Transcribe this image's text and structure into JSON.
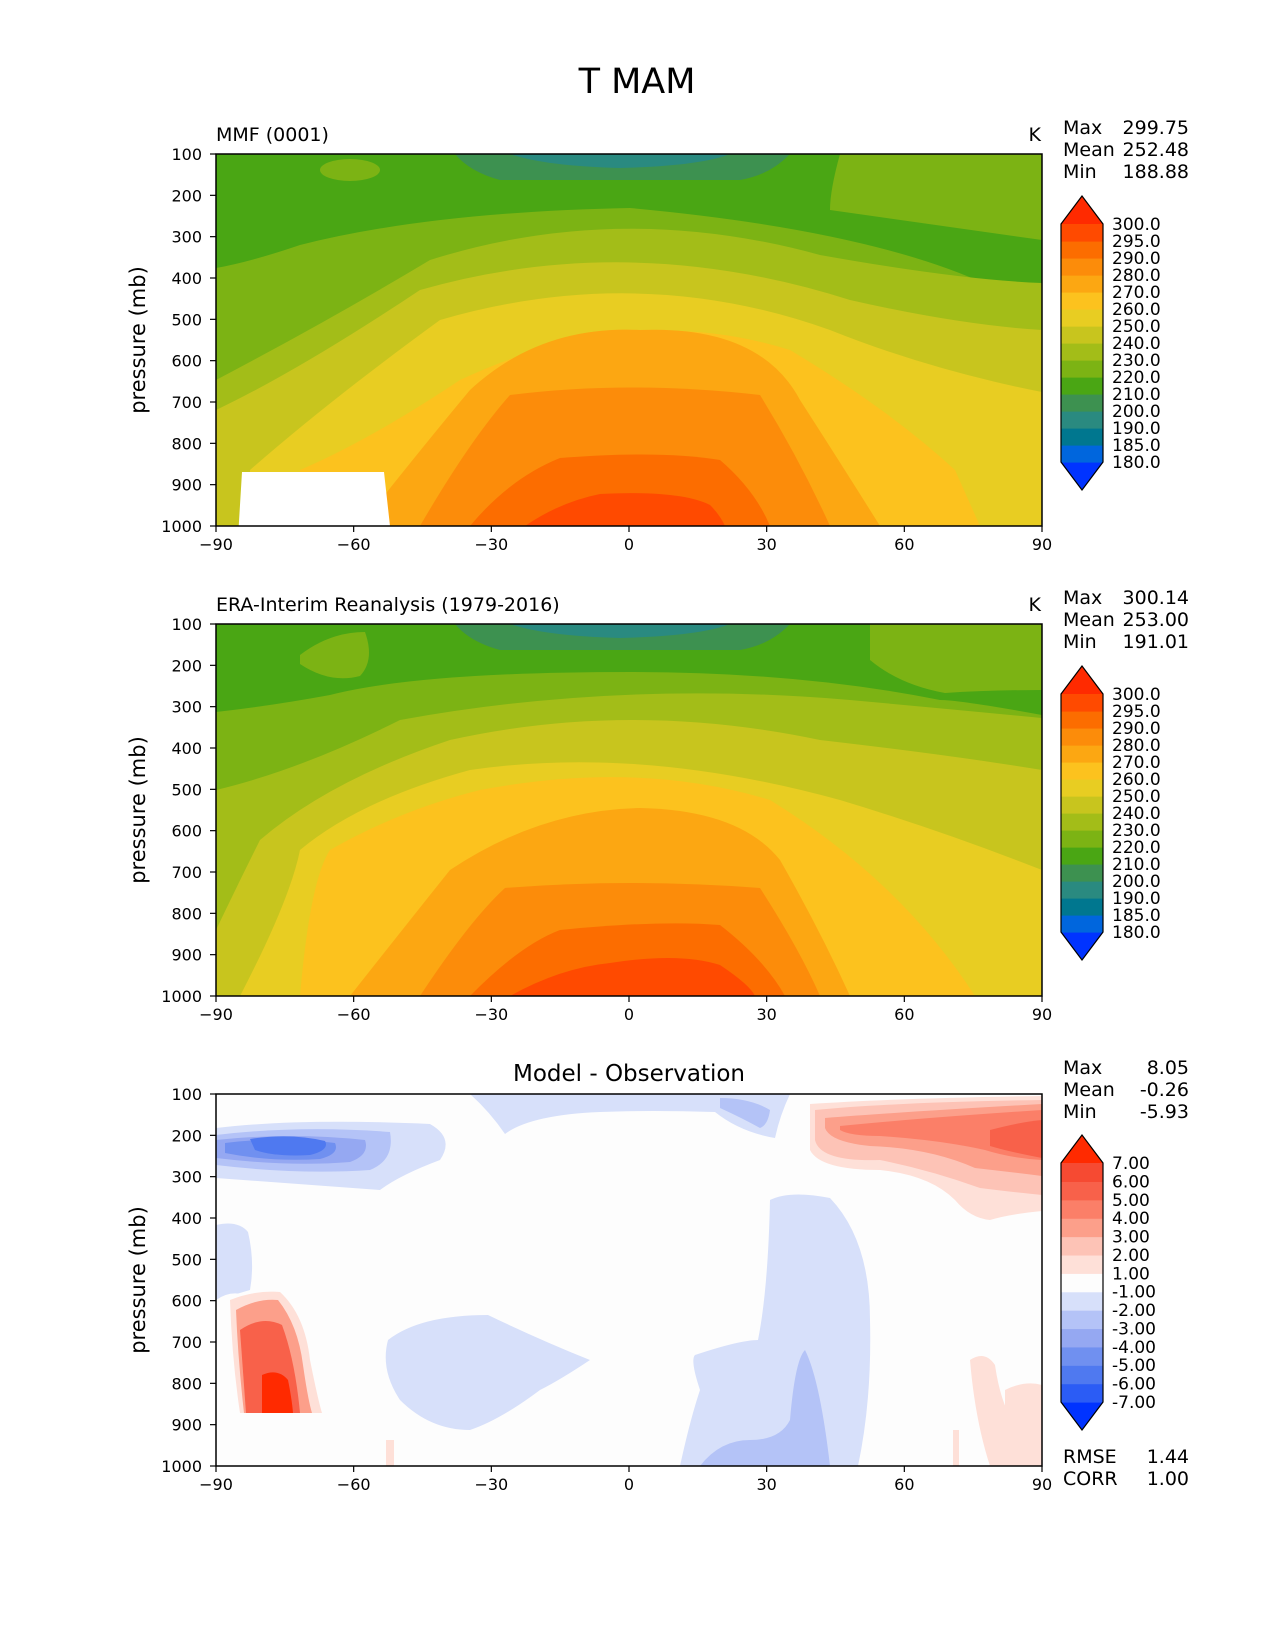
{
  "title": "T MAM",
  "colors": {
    "abs_levels": [
      "#0033ff",
      "#0066dd",
      "#00778f",
      "#2a8a80",
      "#3d9150",
      "#4aa614",
      "#7cb314",
      "#a3bd18",
      "#c8c51e",
      "#e8cd22",
      "#fcc21e",
      "#fca712",
      "#fc8c0a",
      "#fc6d00",
      "#ff4a00",
      "#ff2a00"
    ],
    "diff_levels": [
      "#0033ff",
      "#2b5cf5",
      "#4f79f0",
      "#7090f0",
      "#95a8f2",
      "#b4c3f7",
      "#d7e0fa",
      "#fdfdfd",
      "#fee0d8",
      "#fdc3b6",
      "#fc9f8a",
      "#fb7f68",
      "#f8614a",
      "#f64a32",
      "#ff2a00"
    ]
  },
  "panels": [
    {
      "id": "model",
      "left_title": "MMF (0001)",
      "center_title": "",
      "units": "K",
      "stats": [
        {
          "label": "Max",
          "value": "299.75"
        },
        {
          "label": "Mean",
          "value": "252.48"
        },
        {
          "label": "Min",
          "value": "188.88"
        }
      ],
      "colorbar_labels": [
        "300.0",
        "295.0",
        "290.0",
        "280.0",
        "270.0",
        "260.0",
        "250.0",
        "240.0",
        "230.0",
        "220.0",
        "210.0",
        "200.0",
        "190.0",
        "185.0",
        "180.0"
      ]
    },
    {
      "id": "obs",
      "left_title": "ERA-Interim Reanalysis (1979-2016)",
      "center_title": "",
      "units": "K",
      "stats": [
        {
          "label": "Max",
          "value": "300.14"
        },
        {
          "label": "Mean",
          "value": "253.00"
        },
        {
          "label": "Min",
          "value": "191.01"
        }
      ],
      "colorbar_labels": [
        "300.0",
        "295.0",
        "290.0",
        "280.0",
        "270.0",
        "260.0",
        "250.0",
        "240.0",
        "230.0",
        "220.0",
        "210.0",
        "200.0",
        "190.0",
        "185.0",
        "180.0"
      ]
    },
    {
      "id": "diff",
      "left_title": "",
      "center_title": "Model - Observation",
      "units": "",
      "stats": [
        {
          "label": "Max",
          "value": "8.05"
        },
        {
          "label": "Mean",
          "value": "-0.26"
        },
        {
          "label": "Min",
          "value": "-5.93"
        }
      ],
      "colorbar_labels": [
        "7.00",
        "6.00",
        "5.00",
        "4.00",
        "3.00",
        "2.00",
        "1.00",
        "-1.00",
        "-2.00",
        "-3.00",
        "-4.00",
        "-5.00",
        "-6.00",
        "-7.00"
      ],
      "bottom_stats": [
        {
          "label": "RMSE",
          "value": "1.44"
        },
        {
          "label": "CORR",
          "value": "1.00"
        }
      ]
    }
  ],
  "chart_data": [
    {
      "type": "heatmap",
      "title": "MMF (0001)",
      "ylabel": "pressure (mb)",
      "xlim": [
        -90,
        90
      ],
      "ylim": [
        1000,
        100
      ],
      "xticks": [
        "−90",
        "−60",
        "−30",
        "0",
        "30",
        "60",
        "90"
      ],
      "yticks": [
        "100",
        "200",
        "300",
        "400",
        "500",
        "600",
        "700",
        "800",
        "900",
        "1000"
      ],
      "levels": [
        180,
        185,
        190,
        200,
        210,
        220,
        230,
        240,
        250,
        260,
        270,
        280,
        290,
        295,
        300
      ],
      "units": "K",
      "max": 299.75,
      "mean": 252.48,
      "min": 188.88
    },
    {
      "type": "heatmap",
      "title": "ERA-Interim Reanalysis (1979-2016)",
      "ylabel": "pressure (mb)",
      "xlim": [
        -90,
        90
      ],
      "ylim": [
        1000,
        100
      ],
      "xticks": [
        "−90",
        "−60",
        "−30",
        "0",
        "30",
        "60",
        "90"
      ],
      "yticks": [
        "100",
        "200",
        "300",
        "400",
        "500",
        "600",
        "700",
        "800",
        "900",
        "1000"
      ],
      "levels": [
        180,
        185,
        190,
        200,
        210,
        220,
        230,
        240,
        250,
        260,
        270,
        280,
        290,
        295,
        300
      ],
      "units": "K",
      "max": 300.14,
      "mean": 253.0,
      "min": 191.01
    },
    {
      "type": "heatmap",
      "title": "Model - Observation",
      "ylabel": "pressure (mb)",
      "xlim": [
        -90,
        90
      ],
      "ylim": [
        1000,
        100
      ],
      "xticks": [
        "−90",
        "−60",
        "−30",
        "0",
        "30",
        "60",
        "90"
      ],
      "yticks": [
        "100",
        "200",
        "300",
        "400",
        "500",
        "600",
        "700",
        "800",
        "900",
        "1000"
      ],
      "levels": [
        -7,
        -6,
        -5,
        -4,
        -3,
        -2,
        -1,
        1,
        2,
        3,
        4,
        5,
        6,
        7
      ],
      "max": 8.05,
      "mean": -0.26,
      "min": -5.93,
      "rmse": 1.44,
      "corr": 1.0
    }
  ]
}
